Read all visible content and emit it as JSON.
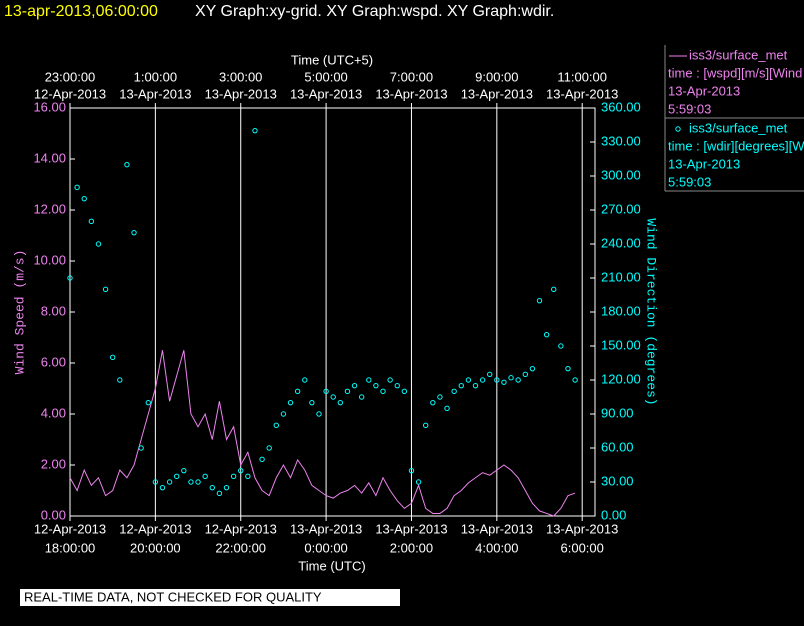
{
  "chart_data": {
    "type": "line_scatter",
    "title": "13-apr-2013,06:00:00",
    "subtitle": "XY Graph:xy-grid.  XY Graph:wspd.  XY Graph:wdir.",
    "xlabel": "Time (UTC)",
    "x2label": "Time (UTC+5)",
    "ylabel": "Wind Speed (m/s)",
    "y2label": "Wind Direction (degrees)",
    "footer": "REAL-TIME DATA, NOT CHECKED FOR QUALITY",
    "legend": "right",
    "grid": "x",
    "xlim": [
      "2013-04-12 18:00",
      "2013-04-13 06:18"
    ],
    "xticks": [
      {
        "value": "2013-04-12 18:00",
        "label": "18:00:00",
        "date": "12-Apr-2013"
      },
      {
        "value": "2013-04-12 20:00",
        "label": "20:00:00",
        "date": "12-Apr-2013"
      },
      {
        "value": "2013-04-12 22:00",
        "label": "22:00:00",
        "date": "12-Apr-2013"
      },
      {
        "value": "2013-04-13 00:00",
        "label": "0:00:00",
        "date": "13-Apr-2013"
      },
      {
        "value": "2013-04-13 02:00",
        "label": "2:00:00",
        "date": "13-Apr-2013"
      },
      {
        "value": "2013-04-13 04:00",
        "label": "4:00:00",
        "date": "13-Apr-2013"
      },
      {
        "value": "2013-04-13 06:00",
        "label": "6:00:00",
        "date": "13-Apr-2013"
      }
    ],
    "x2ticks": [
      {
        "value": "2013-04-12 18:00",
        "label": "23:00:00",
        "date": "12-Apr-2013"
      },
      {
        "value": "2013-04-12 20:00",
        "label": "1:00:00",
        "date": "13-Apr-2013"
      },
      {
        "value": "2013-04-12 22:00",
        "label": "3:00:00",
        "date": "13-Apr-2013"
      },
      {
        "value": "2013-04-13 00:00",
        "label": "5:00:00",
        "date": "13-Apr-2013"
      },
      {
        "value": "2013-04-13 02:00",
        "label": "7:00:00",
        "date": "13-Apr-2013"
      },
      {
        "value": "2013-04-13 04:00",
        "label": "9:00:00",
        "date": "13-Apr-2013"
      },
      {
        "value": "2013-04-13 06:00",
        "label": "11:00:00",
        "date": "13-Apr-2013"
      }
    ],
    "ylim": [
      0,
      16
    ],
    "yticks": [
      {
        "value": 0,
        "label": "0.00"
      },
      {
        "value": 2,
        "label": "2.00"
      },
      {
        "value": 4,
        "label": "4.00"
      },
      {
        "value": 6,
        "label": "6.00"
      },
      {
        "value": 8,
        "label": "8.00"
      },
      {
        "value": 10,
        "label": "10.00"
      },
      {
        "value": 12,
        "label": "12.00"
      },
      {
        "value": 14,
        "label": "14.00"
      },
      {
        "value": 16,
        "label": "16.00"
      }
    ],
    "y2lim": [
      0,
      360
    ],
    "y2ticks": [
      {
        "value": 0,
        "label": "0.00"
      },
      {
        "value": 30,
        "label": "30.00"
      },
      {
        "value": 60,
        "label": "60.00"
      },
      {
        "value": 90,
        "label": "90.00"
      },
      {
        "value": 120,
        "label": "120.00"
      },
      {
        "value": 150,
        "label": "150.00"
      },
      {
        "value": 180,
        "label": "180.00"
      },
      {
        "value": 210,
        "label": "210.00"
      },
      {
        "value": 240,
        "label": "240.00"
      },
      {
        "value": 270,
        "label": "270.00"
      },
      {
        "value": 300,
        "label": "300.00"
      },
      {
        "value": 330,
        "label": "330.00"
      },
      {
        "value": 360,
        "label": "360.00"
      }
    ],
    "x": [
      "2013-04-12 18:00",
      "2013-04-12 18:10",
      "2013-04-12 18:20",
      "2013-04-12 18:30",
      "2013-04-12 18:40",
      "2013-04-12 18:50",
      "2013-04-12 19:00",
      "2013-04-12 19:10",
      "2013-04-12 19:20",
      "2013-04-12 19:30",
      "2013-04-12 19:40",
      "2013-04-12 19:50",
      "2013-04-12 20:00",
      "2013-04-12 20:10",
      "2013-04-12 20:20",
      "2013-04-12 20:30",
      "2013-04-12 20:40",
      "2013-04-12 20:50",
      "2013-04-12 21:00",
      "2013-04-12 21:10",
      "2013-04-12 21:20",
      "2013-04-12 21:30",
      "2013-04-12 21:40",
      "2013-04-12 21:50",
      "2013-04-12 22:00",
      "2013-04-12 22:10",
      "2013-04-12 22:20",
      "2013-04-12 22:30",
      "2013-04-12 22:40",
      "2013-04-12 22:50",
      "2013-04-12 23:00",
      "2013-04-12 23:10",
      "2013-04-12 23:20",
      "2013-04-12 23:30",
      "2013-04-12 23:40",
      "2013-04-12 23:50",
      "2013-04-13 00:00",
      "2013-04-13 00:10",
      "2013-04-13 00:20",
      "2013-04-13 00:30",
      "2013-04-13 00:40",
      "2013-04-13 00:50",
      "2013-04-13 01:00",
      "2013-04-13 01:10",
      "2013-04-13 01:20",
      "2013-04-13 01:30",
      "2013-04-13 01:40",
      "2013-04-13 01:50",
      "2013-04-13 02:00",
      "2013-04-13 02:10",
      "2013-04-13 02:20",
      "2013-04-13 02:30",
      "2013-04-13 02:40",
      "2013-04-13 02:50",
      "2013-04-13 03:00",
      "2013-04-13 03:10",
      "2013-04-13 03:20",
      "2013-04-13 03:30",
      "2013-04-13 03:40",
      "2013-04-13 03:50",
      "2013-04-13 04:00",
      "2013-04-13 04:10",
      "2013-04-13 04:20",
      "2013-04-13 04:30",
      "2013-04-13 04:40",
      "2013-04-13 04:50",
      "2013-04-13 05:00",
      "2013-04-13 05:10",
      "2013-04-13 05:20",
      "2013-04-13 05:30",
      "2013-04-13 05:40",
      "2013-04-13 05:50"
    ],
    "series": [
      {
        "name": "iss3/surface_met",
        "kind": "line",
        "color": "#ee82ee",
        "legend_details": [
          "time : [wspd][m/s][Wind",
          "13-Apr-2013",
          "5:59:03"
        ],
        "values": [
          1.5,
          1.0,
          1.8,
          1.2,
          1.5,
          0.8,
          1.0,
          1.8,
          1.5,
          2.0,
          3.0,
          4.0,
          5.0,
          6.5,
          4.5,
          5.5,
          6.5,
          4.0,
          3.5,
          4.0,
          3.0,
          4.5,
          3.0,
          3.5,
          2.0,
          2.5,
          1.5,
          1.0,
          0.8,
          1.5,
          2.0,
          1.5,
          2.2,
          1.8,
          1.2,
          1.0,
          0.8,
          0.7,
          0.9,
          1.0,
          1.2,
          0.9,
          1.3,
          0.8,
          1.5,
          1.0,
          0.6,
          0.3,
          0.5,
          1.2,
          0.3,
          0.1,
          0.1,
          0.3,
          0.8,
          1.0,
          1.3,
          1.5,
          1.7,
          1.6,
          1.8,
          2.0,
          1.8,
          1.5,
          1.0,
          0.5,
          0.2,
          0.1,
          0.0,
          0.3,
          0.8,
          0.9
        ]
      },
      {
        "name": "iss3/surface_met",
        "kind": "scatter",
        "axis": "y2",
        "color": "#00ffff",
        "legend_details": [
          "time : [wdir][degrees][W",
          "13-Apr-2013",
          "5:59:03"
        ],
        "values": [
          210,
          290,
          280,
          260,
          240,
          200,
          140,
          120,
          310,
          250,
          60,
          100,
          30,
          25,
          30,
          35,
          40,
          30,
          30,
          35,
          25,
          20,
          25,
          35,
          40,
          35,
          340,
          50,
          60,
          80,
          90,
          100,
          110,
          120,
          100,
          90,
          110,
          105,
          100,
          110,
          115,
          105,
          120,
          115,
          110,
          120,
          115,
          110,
          40,
          30,
          80,
          100,
          105,
          95,
          110,
          115,
          120,
          115,
          120,
          125,
          120,
          118,
          122,
          120,
          125,
          130,
          190,
          160,
          200,
          150,
          130,
          120
        ]
      }
    ]
  }
}
